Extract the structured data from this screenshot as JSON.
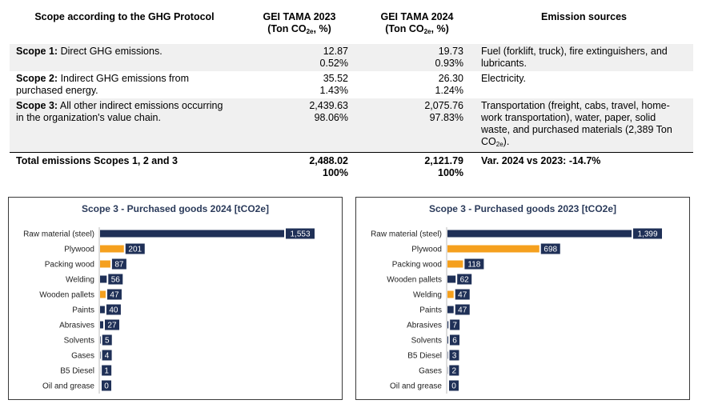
{
  "table": {
    "headers": {
      "scope": "Scope according to the GHG Protocol",
      "gei2023_l1": "GEI TAMA 2023",
      "gei2023_l2_pre": "(Ton CO",
      "gei2023_l2_sub": "2e",
      "gei2023_l2_post": ", %)",
      "gei2024_l1": "GEI TAMA 2024",
      "gei2024_l2_pre": "(Ton CO",
      "gei2024_l2_sub": "2e",
      "gei2024_l2_post": ", %)",
      "sources": "Emission sources"
    },
    "rows": [
      {
        "scope_bold": "Scope 1:",
        "scope_text": " Direct GHG emissions.",
        "v2023": "12.87",
        "p2023": "0.52%",
        "v2024": "19.73",
        "p2024": "0.93%",
        "sources": "Fuel (forklift, truck), fire extinguishers, and lubricants."
      },
      {
        "scope_bold": "Scope 2:",
        "scope_text": " Indirect GHG emissions from purchased energy.",
        "v2023": "35.52",
        "p2023": "1.43%",
        "v2024": "26.30",
        "p2024": "1.24%",
        "sources": "Electricity."
      },
      {
        "scope_bold": "Scope 3:",
        "scope_text": " All other indirect emissions occurring in the organization's value chain.",
        "v2023": "2,439.63",
        "p2023": "98.06%",
        "v2024": "2,075.76",
        "p2024": "97.83%",
        "sources_pre": "Transportation (freight, cabs, travel, home-work transportation), water, paper, solid waste, and purchased materials (2,389 Ton CO",
        "sources_sub": "2e",
        "sources_post": ")."
      }
    ],
    "total": {
      "label": "Total emissions Scopes 1, 2 and 3",
      "v2023": "2,488.02",
      "p2023": "100%",
      "v2024": "2,121.79",
      "p2024": "100%",
      "variation": "Var. 2024 vs 2023: -14.7%"
    }
  },
  "colors": {
    "navy": "#1f3057",
    "orange": "#f5a01e",
    "title": "#2a3a5a"
  },
  "chart_data": [
    {
      "type": "bar",
      "orientation": "horizontal",
      "title": "Scope 3 - Purchased goods 2024 [tCO2e]",
      "categories": [
        "Raw material (steel)",
        "Plywood",
        "Packing wood",
        "Welding",
        "Wooden pallets",
        "Paints",
        "Abrasives",
        "Solvents",
        "Gases",
        "B5 Diesel",
        "Oil and grease"
      ],
      "values": [
        1553,
        201,
        87,
        56,
        47,
        40,
        27,
        5,
        4,
        1,
        0
      ],
      "value_labels": [
        "1,553",
        "201",
        "87",
        "56",
        "47",
        "40",
        "27",
        "5",
        "4",
        "1",
        "0"
      ],
      "bar_colors": [
        "navy",
        "orange",
        "orange",
        "navy",
        "orange",
        "navy",
        "navy",
        "navy",
        "navy",
        "navy",
        "navy"
      ],
      "xlim": [
        0,
        1553
      ]
    },
    {
      "type": "bar",
      "orientation": "horizontal",
      "title": "Scope 3 - Purchased goods 2023 [tCO2e]",
      "categories": [
        "Raw material (steel)",
        "Plywood",
        "Packing wood",
        "Wooden pallets",
        "Welding",
        "Paints",
        "Abrasives",
        "Solvents",
        "B5 Diesel",
        "Gases",
        "Oil and grease"
      ],
      "values": [
        1399,
        698,
        118,
        62,
        47,
        47,
        7,
        6,
        3,
        2,
        0
      ],
      "value_labels": [
        "1,399",
        "698",
        "118",
        "62",
        "47",
        "47",
        "7",
        "6",
        "3",
        "2",
        "0"
      ],
      "bar_colors": [
        "navy",
        "orange",
        "orange",
        "navy",
        "orange",
        "navy",
        "navy",
        "navy",
        "navy",
        "navy",
        "navy"
      ],
      "xlim": [
        0,
        1399
      ]
    }
  ]
}
